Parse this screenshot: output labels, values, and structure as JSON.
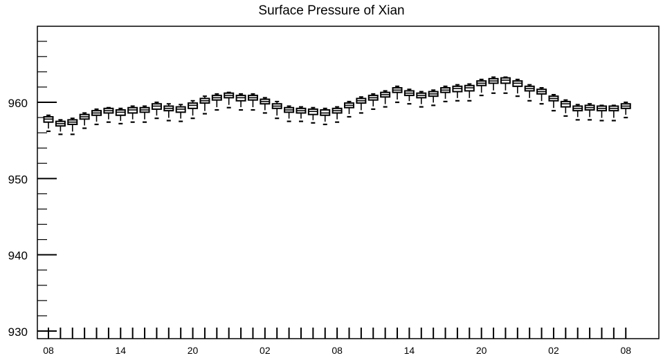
{
  "chart_data": {
    "type": "boxplot",
    "title": "Surface Pressure of Xian",
    "xlabel": "",
    "ylabel": "",
    "ylim": [
      930,
      970
    ],
    "y_ticks": [
      930,
      940,
      950,
      960
    ],
    "x_ticks": [
      "08",
      "14",
      "20",
      "02",
      "08",
      "14",
      "20",
      "02",
      "08"
    ],
    "x_tick_positions": [
      0,
      6,
      12,
      18,
      24,
      30,
      36,
      42,
      48
    ],
    "grid": false,
    "legend": "none",
    "boxes": [
      {
        "x": 0,
        "whisker_low": 956.2,
        "q1": 957.4,
        "median": 957.8,
        "q3": 958.1,
        "whisker_high": 958.3
      },
      {
        "x": 1,
        "whisker_low": 955.8,
        "q1": 956.9,
        "median": 957.2,
        "q3": 957.5,
        "whisker_high": 957.7
      },
      {
        "x": 2,
        "whisker_low": 955.8,
        "q1": 957.1,
        "median": 957.4,
        "q3": 957.7,
        "whisker_high": 957.9
      },
      {
        "x": 3,
        "whisker_low": 956.6,
        "q1": 957.8,
        "median": 958.1,
        "q3": 958.4,
        "whisker_high": 958.6
      },
      {
        "x": 4,
        "whisker_low": 957.1,
        "q1": 958.3,
        "median": 958.6,
        "q3": 958.9,
        "whisker_high": 959.1
      },
      {
        "x": 5,
        "whisker_low": 957.4,
        "q1": 958.6,
        "median": 958.9,
        "q3": 959.2,
        "whisker_high": 959.3
      },
      {
        "x": 6,
        "whisker_low": 957.2,
        "q1": 958.3,
        "median": 958.7,
        "q3": 959.0,
        "whisker_high": 959.2
      },
      {
        "x": 7,
        "whisker_low": 957.4,
        "q1": 958.6,
        "median": 959.0,
        "q3": 959.3,
        "whisker_high": 959.5
      },
      {
        "x": 8,
        "whisker_low": 957.4,
        "q1": 958.7,
        "median": 959.0,
        "q3": 959.3,
        "whisker_high": 959.5
      },
      {
        "x": 9,
        "whisker_low": 957.9,
        "q1": 959.1,
        "median": 959.5,
        "q3": 959.8,
        "whisker_high": 960.0
      },
      {
        "x": 10,
        "whisker_low": 957.6,
        "q1": 958.9,
        "median": 959.2,
        "q3": 959.5,
        "whisker_high": 959.8
      },
      {
        "x": 11,
        "whisker_low": 957.5,
        "q1": 958.7,
        "median": 959.1,
        "q3": 959.4,
        "whisker_high": 959.7
      },
      {
        "x": 12,
        "whisker_low": 957.9,
        "q1": 959.2,
        "median": 959.6,
        "q3": 959.9,
        "whisker_high": 960.2
      },
      {
        "x": 13,
        "whisker_low": 958.5,
        "q1": 959.9,
        "median": 960.2,
        "q3": 960.5,
        "whisker_high": 960.8
      },
      {
        "x": 14,
        "whisker_low": 959.0,
        "q1": 960.3,
        "median": 960.6,
        "q3": 960.9,
        "whisker_high": 961.1
      },
      {
        "x": 15,
        "whisker_low": 959.3,
        "q1": 960.6,
        "median": 960.9,
        "q3": 961.2,
        "whisker_high": 961.3
      },
      {
        "x": 16,
        "whisker_low": 959.0,
        "q1": 960.2,
        "median": 960.6,
        "q3": 960.9,
        "whisker_high": 961.1
      },
      {
        "x": 17,
        "whisker_low": 959.0,
        "q1": 960.3,
        "median": 960.6,
        "q3": 960.9,
        "whisker_high": 961.1
      },
      {
        "x": 18,
        "whisker_low": 958.6,
        "q1": 959.8,
        "median": 960.1,
        "q3": 960.4,
        "whisker_high": 960.6
      },
      {
        "x": 19,
        "whisker_low": 957.9,
        "q1": 959.2,
        "median": 959.5,
        "q3": 959.8,
        "whisker_high": 960.1
      },
      {
        "x": 20,
        "whisker_low": 957.5,
        "q1": 958.7,
        "median": 959.0,
        "q3": 959.3,
        "whisker_high": 959.5
      },
      {
        "x": 21,
        "whisker_low": 957.5,
        "q1": 958.6,
        "median": 958.9,
        "q3": 959.2,
        "whisker_high": 959.4
      },
      {
        "x": 22,
        "whisker_low": 957.3,
        "q1": 958.4,
        "median": 958.8,
        "q3": 959.1,
        "whisker_high": 959.3
      },
      {
        "x": 23,
        "whisker_low": 957.1,
        "q1": 958.3,
        "median": 958.6,
        "q3": 959.0,
        "whisker_high": 959.2
      },
      {
        "x": 24,
        "whisker_low": 957.4,
        "q1": 958.6,
        "median": 958.9,
        "q3": 959.2,
        "whisker_high": 959.4
      },
      {
        "x": 25,
        "whisker_low": 958.1,
        "q1": 959.3,
        "median": 959.6,
        "q3": 959.9,
        "whisker_high": 960.1
      },
      {
        "x": 26,
        "whisker_low": 958.6,
        "q1": 959.9,
        "median": 960.2,
        "q3": 960.5,
        "whisker_high": 960.7
      },
      {
        "x": 27,
        "whisker_low": 959.1,
        "q1": 960.3,
        "median": 960.6,
        "q3": 960.9,
        "whisker_high": 961.1
      },
      {
        "x": 28,
        "whisker_low": 959.4,
        "q1": 960.7,
        "median": 961.0,
        "q3": 961.3,
        "whisker_high": 961.5
      },
      {
        "x": 29,
        "whisker_low": 960.0,
        "q1": 961.3,
        "median": 961.6,
        "q3": 961.9,
        "whisker_high": 962.1
      },
      {
        "x": 30,
        "whisker_low": 959.8,
        "q1": 960.9,
        "median": 961.2,
        "q3": 961.5,
        "whisker_high": 961.7
      },
      {
        "x": 31,
        "whisker_low": 959.4,
        "q1": 960.6,
        "median": 960.9,
        "q3": 961.2,
        "whisker_high": 961.4
      },
      {
        "x": 32,
        "whisker_low": 959.6,
        "q1": 960.8,
        "median": 961.1,
        "q3": 961.4,
        "whisker_high": 961.6
      },
      {
        "x": 33,
        "whisker_low": 960.1,
        "q1": 961.3,
        "median": 961.6,
        "q3": 961.9,
        "whisker_high": 962.1
      },
      {
        "x": 34,
        "whisker_low": 960.2,
        "q1": 961.4,
        "median": 961.8,
        "q3": 962.1,
        "whisker_high": 962.3
      },
      {
        "x": 35,
        "whisker_low": 960.2,
        "q1": 961.5,
        "median": 961.9,
        "q3": 962.2,
        "whisker_high": 962.4
      },
      {
        "x": 36,
        "whisker_low": 960.9,
        "q1": 962.2,
        "median": 962.5,
        "q3": 962.8,
        "whisker_high": 963.0
      },
      {
        "x": 37,
        "whisker_low": 961.2,
        "q1": 962.5,
        "median": 962.8,
        "q3": 963.1,
        "whisker_high": 963.3
      },
      {
        "x": 38,
        "whisker_low": 961.2,
        "q1": 962.5,
        "median": 962.9,
        "q3": 963.2,
        "whisker_high": 963.3
      },
      {
        "x": 39,
        "whisker_low": 960.8,
        "q1": 962.1,
        "median": 962.5,
        "q3": 962.8,
        "whisker_high": 963.0
      },
      {
        "x": 40,
        "whisker_low": 960.2,
        "q1": 961.5,
        "median": 961.8,
        "q3": 962.1,
        "whisker_high": 962.3
      },
      {
        "x": 41,
        "whisker_low": 959.8,
        "q1": 961.1,
        "median": 961.4,
        "q3": 961.7,
        "whisker_high": 961.9
      },
      {
        "x": 42,
        "whisker_low": 958.9,
        "q1": 960.2,
        "median": 960.5,
        "q3": 960.8,
        "whisker_high": 961.0
      },
      {
        "x": 43,
        "whisker_low": 958.2,
        "q1": 959.4,
        "median": 959.8,
        "q3": 960.1,
        "whisker_high": 960.3
      },
      {
        "x": 44,
        "whisker_low": 957.7,
        "q1": 958.9,
        "median": 959.2,
        "q3": 959.5,
        "whisker_high": 959.7
      },
      {
        "x": 45,
        "whisker_low": 957.7,
        "q1": 959.0,
        "median": 959.3,
        "q3": 959.6,
        "whisker_high": 959.8
      },
      {
        "x": 46,
        "whisker_low": 957.6,
        "q1": 958.9,
        "median": 959.2,
        "q3": 959.5,
        "whisker_high": 959.6
      },
      {
        "x": 47,
        "whisker_low": 957.6,
        "q1": 958.9,
        "median": 959.2,
        "q3": 959.5,
        "whisker_high": 959.6
      },
      {
        "x": 48,
        "whisker_low": 958.0,
        "q1": 959.2,
        "median": 959.5,
        "q3": 959.8,
        "whisker_high": 960.0
      }
    ]
  },
  "colors": {
    "axis": "#000000",
    "box_fill": "#ffffff",
    "box_stroke": "#000000",
    "background": "#ffffff"
  }
}
